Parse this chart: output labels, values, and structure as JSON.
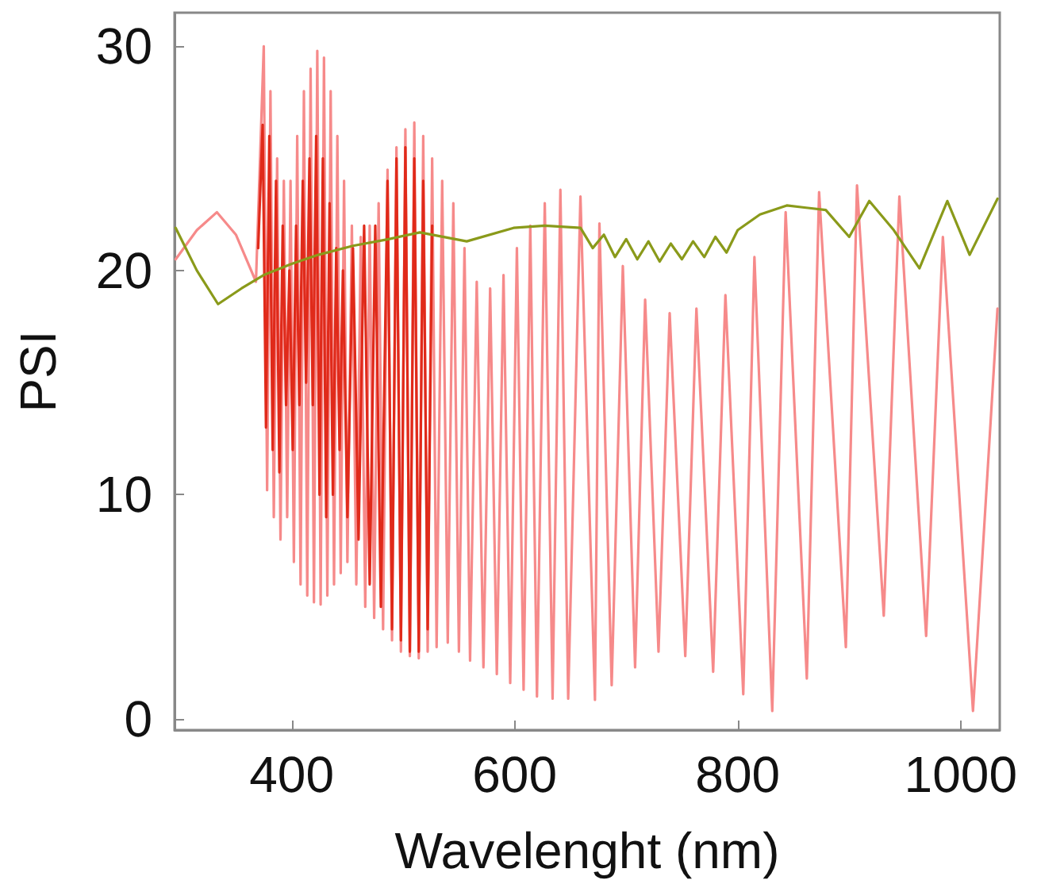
{
  "chart_data": {
    "type": "line",
    "xlabel": "Wavelenght (nm)",
    "ylabel": "PSI",
    "xlim": [
      295,
      1035
    ],
    "ylim": [
      -0.5,
      31.5
    ],
    "xticks": [
      400,
      600,
      800,
      1000
    ],
    "yticks": [
      0,
      10,
      20,
      30
    ],
    "grid": false,
    "marker": "none",
    "line_style": "solid",
    "series": [
      {
        "color": "#f68a8a",
        "x": [
          296,
          315,
          333,
          350,
          368,
          375,
          378,
          381,
          384,
          387,
          390,
          393,
          396,
          399,
          402,
          405,
          408,
          411,
          414,
          417,
          420,
          423,
          426,
          429,
          432,
          435,
          438,
          441,
          444,
          447,
          450,
          454,
          458,
          462,
          466,
          470,
          474,
          478,
          482,
          486,
          490,
          494,
          498,
          502,
          506,
          510,
          514,
          518,
          522,
          526,
          530,
          535,
          540,
          545,
          550,
          555,
          560,
          566,
          572,
          578,
          584,
          590,
          596,
          602,
          608,
          614,
          620,
          627,
          634,
          641,
          648,
          659,
          672,
          676,
          687,
          697,
          708,
          717,
          729,
          739,
          753,
          763,
          778,
          789,
          805,
          815,
          831,
          843,
          862,
          873,
          897,
          907,
          931,
          945,
          969,
          984,
          1011,
          1033
        ],
        "values": [
          20.5,
          21.8,
          22.6,
          21.6,
          19.5,
          30,
          10.2,
          28,
          9,
          25,
          8,
          24,
          9,
          24,
          7,
          26,
          6,
          28,
          5.5,
          29,
          5.2,
          29.8,
          5.1,
          29.5,
          5.5,
          28,
          6,
          26,
          6.5,
          24,
          7,
          22,
          6,
          21.5,
          5,
          22,
          4.5,
          23,
          4,
          24.5,
          3.5,
          25.5,
          3,
          26.3,
          2.8,
          26.6,
          2.7,
          26,
          3,
          25,
          3.2,
          24,
          3.4,
          23,
          3,
          21,
          2.6,
          19.5,
          2.3,
          19.2,
          2,
          19.8,
          1.6,
          21,
          1.3,
          22,
          1,
          23,
          0.9,
          23.6,
          0.9,
          23.3,
          0.85,
          22.1,
          1.5,
          20.2,
          2.3,
          18.7,
          3,
          18.1,
          2.8,
          18.3,
          2.1,
          18.9,
          1.1,
          20.6,
          0.35,
          22.6,
          1.8,
          23.5,
          3.2,
          23.8,
          4.6,
          23.3,
          3.7,
          21.5,
          0.35,
          18.3
        ]
      },
      {
        "color": "#e02a1a",
        "x": [
          370,
          374,
          377,
          380,
          383,
          386,
          389,
          392,
          395,
          398,
          401,
          404,
          407,
          410,
          413,
          416,
          419,
          422,
          425,
          428,
          431,
          434,
          437,
          440,
          443,
          446,
          450,
          455,
          460,
          465,
          470,
          475,
          480,
          486,
          490,
          494,
          498,
          502,
          506,
          510,
          514,
          518,
          522,
          526
        ],
        "values": [
          21,
          26.5,
          13,
          26,
          12,
          24,
          11,
          22,
          14,
          20,
          12,
          22,
          14,
          24,
          15,
          25,
          14,
          26,
          10,
          25,
          9,
          23,
          10,
          21,
          12,
          20,
          9,
          21,
          8,
          22,
          6,
          22,
          5,
          24,
          4,
          25,
          3.5,
          25.5,
          3,
          25,
          3,
          24,
          4,
          22
        ]
      },
      {
        "color": "#8a9a1a",
        "x": [
          296,
          315,
          334,
          355,
          375,
          400,
          424,
          455,
          487,
          515,
          557,
          599,
          627,
          659,
          670,
          680,
          690,
          700,
          710,
          720,
          730,
          740,
          750,
          760,
          770,
          780,
          790,
          800,
          820,
          844,
          879,
          900,
          918,
          940,
          963,
          988,
          1008,
          1033
        ],
        "values": [
          21.9,
          20,
          18.5,
          19.2,
          19.8,
          20.3,
          20.7,
          21.1,
          21.4,
          21.7,
          21.3,
          21.9,
          22,
          21.9,
          21,
          21.6,
          20.6,
          21.4,
          20.5,
          21.3,
          20.4,
          21.2,
          20.5,
          21.3,
          20.6,
          21.5,
          20.8,
          21.8,
          22.5,
          22.9,
          22.7,
          21.5,
          23.1,
          21.8,
          20.1,
          23.1,
          20.7,
          23.2
        ]
      }
    ]
  }
}
